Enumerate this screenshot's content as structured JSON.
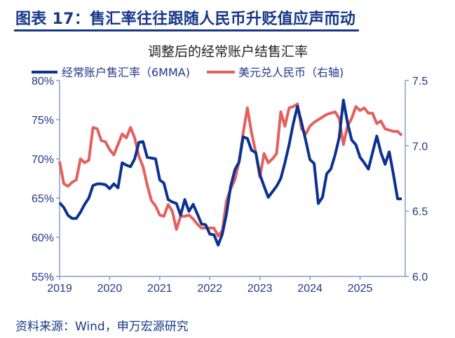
{
  "figure_title": "图表 17：售汇率往往跟随人民币升贬值应声而动",
  "source": "资料来源：Wind，申万宏源研究",
  "chart_data": {
    "type": "line",
    "title": "调整后的经常账户结售汇率",
    "xlabel": "",
    "ylabel": "",
    "x_ticks": [
      "2019",
      "2020",
      "2021",
      "2022",
      "2023",
      "2024",
      "2025"
    ],
    "xlim": [
      "2019-01",
      "2026-01"
    ],
    "y_left": {
      "ylim": [
        55,
        80
      ],
      "ticks": [
        "55%",
        "60%",
        "65%",
        "70%",
        "75%",
        "80%"
      ]
    },
    "y_right": {
      "ylim": [
        6.0,
        7.5
      ],
      "ticks": [
        "6.0",
        "6.5",
        "7.0",
        "7.5"
      ]
    },
    "grid": false,
    "legend_position": "top",
    "dates": [
      "2019-01",
      "2019-02",
      "2019-03",
      "2019-04",
      "2019-05",
      "2019-06",
      "2019-07",
      "2019-08",
      "2019-09",
      "2019-10",
      "2019-11",
      "2019-12",
      "2020-01",
      "2020-02",
      "2020-03",
      "2020-04",
      "2020-05",
      "2020-06",
      "2020-07",
      "2020-08",
      "2020-09",
      "2020-10",
      "2020-11",
      "2020-12",
      "2021-01",
      "2021-02",
      "2021-03",
      "2021-04",
      "2021-05",
      "2021-06",
      "2021-07",
      "2021-08",
      "2021-09",
      "2021-10",
      "2021-11",
      "2021-12",
      "2022-01",
      "2022-02",
      "2022-03",
      "2022-04",
      "2022-05",
      "2022-06",
      "2022-07",
      "2022-08",
      "2022-09",
      "2022-10",
      "2022-11",
      "2022-12",
      "2023-01",
      "2023-02",
      "2023-03",
      "2023-04",
      "2023-05",
      "2023-06",
      "2023-07",
      "2023-08",
      "2023-09",
      "2023-10",
      "2023-11",
      "2023-12",
      "2024-01",
      "2024-02",
      "2024-03",
      "2024-04",
      "2024-05",
      "2024-06",
      "2024-07",
      "2024-08",
      "2024-09",
      "2024-10",
      "2024-11",
      "2024-12",
      "2025-01",
      "2025-02",
      "2025-03",
      "2025-04",
      "2025-05",
      "2025-06",
      "2025-07",
      "2025-08",
      "2025-09",
      "2025-10",
      "2025-11"
    ],
    "series": [
      {
        "name": "经常账户售汇率（6MMA)",
        "axis": "left",
        "unit": "%",
        "color": "#0c3291",
        "values": [
          64.4,
          63.8,
          62.8,
          62.4,
          62.4,
          63.2,
          64.2,
          65.0,
          66.6,
          66.8,
          66.8,
          66.7,
          66.2,
          66.8,
          66.3,
          69.5,
          69.2,
          69.0,
          70.0,
          72.1,
          72.2,
          70.2,
          70.1,
          70.0,
          67.3,
          66.9,
          64.8,
          64.5,
          64.3,
          62.8,
          64.8,
          63.3,
          64.2,
          63.0,
          61.7,
          61.6,
          60.4,
          60.3,
          59.0,
          60.4,
          63.0,
          66.5,
          68.6,
          69.6,
          72.8,
          72.6,
          71.1,
          70.8,
          68.0,
          66.5,
          65.1,
          65.8,
          66.5,
          67.5,
          69.5,
          71.8,
          74.5,
          76.7,
          74.6,
          72.3,
          69.9,
          69.4,
          64.3,
          65.1,
          68.1,
          68.7,
          70.5,
          72.7,
          77.5,
          74.6,
          72.4,
          71.8,
          70.2,
          69.5,
          68.7,
          70.8,
          72.9,
          70.8,
          69.3,
          70.9,
          68.0,
          64.9,
          64.9
        ]
      },
      {
        "name": "美元兑人民币（右轴)",
        "axis": "right",
        "unit": "",
        "color": "#e4605e",
        "values": [
          6.88,
          6.71,
          6.69,
          6.72,
          6.74,
          6.9,
          6.87,
          6.89,
          7.14,
          7.13,
          7.04,
          7.03,
          6.97,
          6.93,
          7.01,
          7.09,
          7.06,
          7.14,
          7.06,
          6.92,
          6.84,
          6.7,
          6.58,
          6.54,
          6.47,
          6.46,
          6.55,
          6.5,
          6.36,
          6.46,
          6.46,
          6.47,
          6.44,
          6.4,
          6.37,
          6.37,
          6.37,
          6.37,
          6.31,
          6.35,
          6.58,
          6.67,
          6.74,
          6.88,
          7.1,
          7.29,
          7.1,
          6.95,
          6.76,
          6.94,
          6.87,
          6.9,
          6.94,
          7.26,
          7.15,
          7.29,
          7.3,
          7.32,
          7.13,
          7.09,
          7.15,
          7.18,
          7.2,
          7.22,
          7.24,
          7.25,
          7.26,
          7.21,
          7.01,
          7.15,
          7.21,
          7.3,
          7.27,
          7.29,
          7.25,
          7.25,
          7.17,
          7.19,
          7.13,
          7.12,
          7.11,
          7.11,
          7.08
        ]
      }
    ]
  }
}
